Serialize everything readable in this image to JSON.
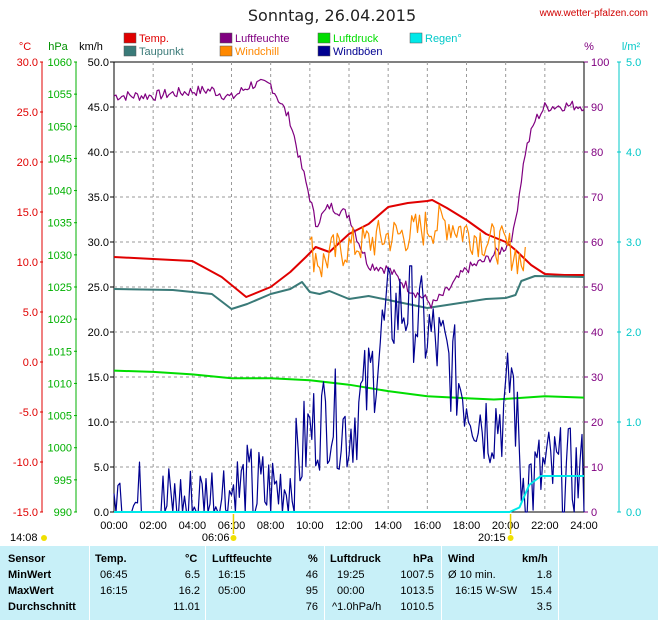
{
  "title": "Sonntag, 26.04.2015",
  "site_link": "www.wetter-pfalzen.com",
  "legend": [
    {
      "label": "Temp.",
      "color": "#e00000"
    },
    {
      "label": "Taupunkt",
      "color": "#3a7a78"
    },
    {
      "label": "Luftfeuchte",
      "color": "#800080"
    },
    {
      "label": "Windchill",
      "color": "#ff8800"
    },
    {
      "label": "Luftdruck",
      "color": "#00dd00"
    },
    {
      "label": "Windböen",
      "color": "#000090"
    },
    {
      "label": "Regen°",
      "color": "#00e8e8"
    }
  ],
  "axis_units": {
    "temp": "°C",
    "press": "hPa",
    "wind": "km/h",
    "hum": "%",
    "rain": "l/m²"
  },
  "sun": {
    "sunrise": "06:06",
    "sunset": "20:15",
    "daylight_start": "14:08"
  },
  "chart_data": {
    "type": "line",
    "x_ticks": [
      "00:00",
      "02:00",
      "04:00",
      "06:00",
      "08:00",
      "10:00",
      "12:00",
      "14:00",
      "16:00",
      "18:00",
      "20:00",
      "22:00",
      "24:00"
    ],
    "x_range": [
      0,
      24
    ],
    "axes": {
      "temp_c": {
        "ticks": [
          "30.0",
          "25.0",
          "20.0",
          "15.0",
          "10.0",
          "5.0",
          "0.0",
          "-5.0",
          "-10.0",
          "-15.0"
        ],
        "range": [
          -15,
          30
        ],
        "color": "#e00000"
      },
      "pressure_hpa": {
        "ticks": [
          "1060",
          "1055",
          "1050",
          "1045",
          "1040",
          "1035",
          "1030",
          "1025",
          "1020",
          "1015",
          "1010",
          "1005",
          "1000",
          "995",
          "990"
        ],
        "range": [
          990,
          1060
        ],
        "color": "#00b000"
      },
      "wind_kmh": {
        "ticks": [
          "50.0",
          "45.0",
          "40.0",
          "35.0",
          "30.0",
          "25.0",
          "20.0",
          "15.0",
          "10.0",
          "5.0",
          "0.0"
        ],
        "range": [
          0,
          50
        ],
        "color": "#000000"
      },
      "humidity_pct": {
        "ticks": [
          "100",
          "90",
          "80",
          "70",
          "60",
          "50",
          "40",
          "30",
          "20",
          "10",
          "0"
        ],
        "range": [
          0,
          100
        ],
        "color": "#800080"
      },
      "rain_lm2": {
        "ticks": [
          "5.0",
          "4.0",
          "3.0",
          "2.0",
          "1.0",
          "0.0"
        ],
        "range": [
          0,
          5
        ],
        "color": "#00c8c8"
      }
    },
    "series": [
      {
        "name": "Temp.",
        "axis": "temp_c",
        "color": "#e00000",
        "width": 2,
        "points": [
          [
            0,
            10.5
          ],
          [
            2,
            10.3
          ],
          [
            4,
            10.1
          ],
          [
            5.5,
            8.5
          ],
          [
            6.75,
            6.5
          ],
          [
            8,
            7.5
          ],
          [
            9,
            9.0
          ],
          [
            9.8,
            10.5
          ],
          [
            10.3,
            11.5
          ],
          [
            11,
            11.0
          ],
          [
            12,
            12.8
          ],
          [
            13,
            13.8
          ],
          [
            14,
            15.5
          ],
          [
            15,
            15.9
          ],
          [
            16,
            16.1
          ],
          [
            16.25,
            16.2
          ],
          [
            17,
            15.4
          ],
          [
            18,
            14.2
          ],
          [
            19,
            12.8
          ],
          [
            20,
            12.0
          ],
          [
            20.5,
            11.2
          ],
          [
            21.3,
            9.7
          ],
          [
            22,
            8.8
          ],
          [
            23,
            8.7
          ],
          [
            24,
            8.7
          ]
        ]
      },
      {
        "name": "Taupunkt",
        "axis": "temp_c",
        "color": "#3a7a78",
        "width": 2,
        "points": [
          [
            0,
            7.3
          ],
          [
            3,
            7.2
          ],
          [
            5,
            6.8
          ],
          [
            6,
            5.3
          ],
          [
            6.8,
            5.8
          ],
          [
            8,
            6.8
          ],
          [
            9,
            7.3
          ],
          [
            9.6,
            8.0
          ],
          [
            10,
            7.0
          ],
          [
            10.5,
            6.8
          ],
          [
            11,
            7.1
          ],
          [
            12,
            6.3
          ],
          [
            13,
            6.6
          ],
          [
            14,
            6.2
          ],
          [
            15,
            5.8
          ],
          [
            16,
            5.4
          ],
          [
            17,
            5.7
          ],
          [
            18,
            6.0
          ],
          [
            19,
            6.3
          ],
          [
            20,
            6.4
          ],
          [
            20.5,
            6.7
          ],
          [
            20.8,
            8.1
          ],
          [
            21.5,
            8.6
          ],
          [
            24,
            8.5
          ]
        ]
      },
      {
        "name": "Luftdruck",
        "axis": "pressure_hpa",
        "color": "#00dd00",
        "width": 2,
        "points": [
          [
            0,
            1012.0
          ],
          [
            2,
            1011.8
          ],
          [
            4,
            1011.4
          ],
          [
            6,
            1010.8
          ],
          [
            8,
            1010.8
          ],
          [
            10,
            1010.5
          ],
          [
            12,
            1009.8
          ],
          [
            14,
            1008.8
          ],
          [
            16,
            1008.0
          ],
          [
            18,
            1007.7
          ],
          [
            19.4,
            1007.5
          ],
          [
            20,
            1007.6
          ],
          [
            22,
            1008.0
          ],
          [
            24,
            1007.8
          ]
        ]
      },
      {
        "name": "Luftfeuchte",
        "axis": "humidity_pct",
        "color": "#800080",
        "width": 1.2,
        "noise": 1.2,
        "points": [
          [
            0,
            92.5
          ],
          [
            2,
            92.5
          ],
          [
            4,
            93.5
          ],
          [
            5,
            93.8
          ],
          [
            6,
            92.0
          ],
          [
            7,
            95.0
          ],
          [
            8,
            95.0
          ],
          [
            9,
            87.0
          ],
          [
            9.5,
            78.0
          ],
          [
            10,
            70.0
          ],
          [
            10.3,
            64.0
          ],
          [
            11,
            68.0
          ],
          [
            12,
            66.0
          ],
          [
            12.5,
            60.0
          ],
          [
            13,
            55.0
          ],
          [
            14,
            54.0
          ],
          [
            15,
            50.0
          ],
          [
            16,
            47.0
          ],
          [
            16.25,
            46.0
          ],
          [
            17,
            49.0
          ],
          [
            18,
            54.0
          ],
          [
            19,
            56.0
          ],
          [
            20,
            59.0
          ],
          [
            20.4,
            62.0
          ],
          [
            21,
            80.0
          ],
          [
            21.5,
            87.0
          ],
          [
            22,
            90.0
          ],
          [
            23,
            90.3
          ],
          [
            24,
            90.3
          ]
        ]
      },
      {
        "name": "Windchill",
        "axis": "temp_c",
        "color": "#ff8800",
        "width": 1.2,
        "noise": 2.0,
        "points": [
          [
            10.0,
            11.3
          ],
          [
            10.4,
            10.5
          ],
          [
            10.6,
            9.6
          ],
          [
            11,
            10.8
          ],
          [
            12,
            11.5
          ],
          [
            13,
            12.0
          ],
          [
            14,
            12.6
          ],
          [
            15,
            12.8
          ],
          [
            16,
            13.5
          ],
          [
            17,
            14.0
          ],
          [
            18,
            13.0
          ],
          [
            19,
            12.2
          ],
          [
            20,
            11.5
          ],
          [
            20.5,
            10.8
          ],
          [
            21,
            9.7
          ]
        ]
      },
      {
        "name": "Windböen",
        "axis": "wind_kmh",
        "color": "#000090",
        "width": 1.2,
        "noise": 5.5,
        "points": [
          [
            0,
            1.0
          ],
          [
            2,
            0.5
          ],
          [
            4,
            0.5
          ],
          [
            5,
            1.5
          ],
          [
            6,
            2.5
          ],
          [
            8,
            2.0
          ],
          [
            9,
            3.5
          ],
          [
            10,
            9.0
          ],
          [
            11,
            11.0
          ],
          [
            12,
            9.0
          ],
          [
            13,
            14.0
          ],
          [
            14,
            22.0
          ],
          [
            15,
            23.0
          ],
          [
            16,
            20.0
          ],
          [
            17,
            17.0
          ],
          [
            18,
            13.0
          ],
          [
            19,
            10.0
          ],
          [
            20,
            11.0
          ],
          [
            20.3,
            16.0
          ],
          [
            20.8,
            4.0
          ],
          [
            21.5,
            3.5
          ],
          [
            22,
            4.5
          ],
          [
            23,
            4.0
          ],
          [
            24,
            4.0
          ]
        ]
      },
      {
        "name": "Regen°",
        "axis": "rain_lm2",
        "color": "#00e8e8",
        "width": 2,
        "points": [
          [
            0,
            0
          ],
          [
            20.2,
            0
          ],
          [
            20.7,
            0.05
          ],
          [
            21.2,
            0.3
          ],
          [
            21.8,
            0.4
          ],
          [
            24,
            0.4
          ]
        ]
      }
    ]
  },
  "table": {
    "headers": [
      "Sensor",
      "Temp.",
      "°C",
      "Luftfeuchte",
      "%",
      "Luftdruck",
      "hPa",
      "Wind",
      "km/h"
    ],
    "rows": [
      {
        "label": "MinWert",
        "temp_time": "06:45",
        "temp_val": "6.5",
        "hum_time": "16:15",
        "hum_val": "46",
        "press_time": "19:25",
        "press_val": "1007.5",
        "wind_time": "Ø 10 min.",
        "wind_val": "1.8"
      },
      {
        "label": "MaxWert",
        "temp_time": "16:15",
        "temp_val": "16.2",
        "hum_time": "05:00",
        "hum_val": "95",
        "press_time": "00:00",
        "press_val": "1013.5",
        "wind_time": "16:15 W-SW",
        "wind_val": "15.4"
      },
      {
        "label": "Durchschnitt",
        "temp_time": "",
        "temp_val": "11.01",
        "hum_time": "",
        "hum_val": "76",
        "press_time": "^1.0hPa/h",
        "press_val": "1010.5",
        "wind_time": "",
        "wind_val": "3.5"
      }
    ]
  }
}
